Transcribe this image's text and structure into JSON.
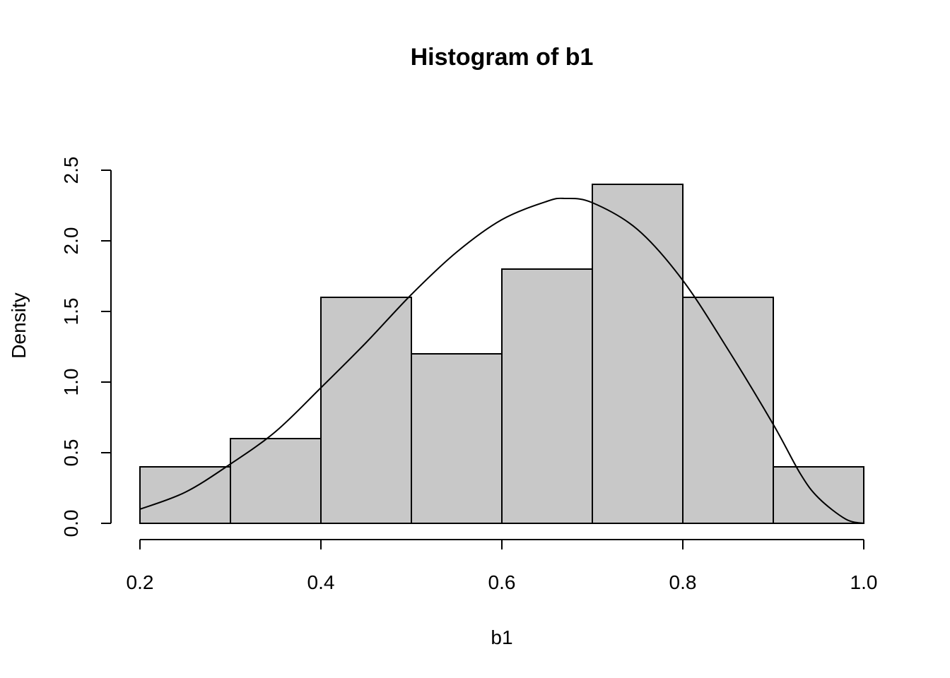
{
  "chart_data": {
    "type": "bar",
    "subtype": "histogram",
    "title": "Histogram of b1",
    "xlabel": "b1",
    "ylabel": "Density",
    "xlim": [
      0.2,
      1.0
    ],
    "ylim": [
      0,
      2.5
    ],
    "x_ticks": [
      "0.2",
      "0.4",
      "0.6",
      "0.8",
      "1.0"
    ],
    "y_ticks": [
      "0.0",
      "0.5",
      "1.0",
      "1.5",
      "2.0",
      "2.5"
    ],
    "bins": [
      {
        "start": 0.2,
        "end": 0.3,
        "density": 0.4
      },
      {
        "start": 0.3,
        "end": 0.4,
        "density": 0.6
      },
      {
        "start": 0.4,
        "end": 0.5,
        "density": 1.6
      },
      {
        "start": 0.5,
        "end": 0.6,
        "density": 1.2
      },
      {
        "start": 0.6,
        "end": 0.7,
        "density": 1.8
      },
      {
        "start": 0.7,
        "end": 0.8,
        "density": 2.4
      },
      {
        "start": 0.8,
        "end": 0.9,
        "density": 1.6
      },
      {
        "start": 0.9,
        "end": 1.0,
        "density": 0.4
      }
    ],
    "bar_color": "#c8c8c8",
    "curve": {
      "description": "density curve",
      "color": "#000000",
      "points": [
        [
          0.2,
          0.1
        ],
        [
          0.25,
          0.22
        ],
        [
          0.3,
          0.42
        ],
        [
          0.35,
          0.65
        ],
        [
          0.4,
          0.96
        ],
        [
          0.45,
          1.28
        ],
        [
          0.5,
          1.62
        ],
        [
          0.55,
          1.92
        ],
        [
          0.6,
          2.15
        ],
        [
          0.65,
          2.28
        ],
        [
          0.67,
          2.3
        ],
        [
          0.7,
          2.27
        ],
        [
          0.75,
          2.08
        ],
        [
          0.8,
          1.72
        ],
        [
          0.85,
          1.23
        ],
        [
          0.9,
          0.7
        ],
        [
          0.93,
          0.35
        ],
        [
          0.95,
          0.18
        ],
        [
          0.98,
          0.03
        ],
        [
          1.0,
          0.0
        ]
      ]
    },
    "grid": false,
    "legend": "none"
  }
}
